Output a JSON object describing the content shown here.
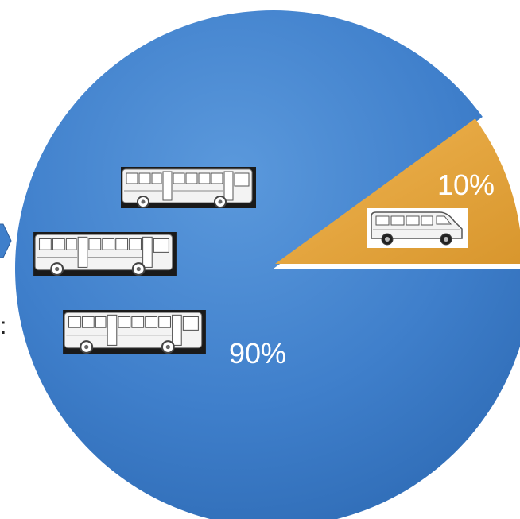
{
  "chart_data": {
    "type": "pie",
    "slices": [
      {
        "value": 90,
        "label": "90%",
        "color": "#3f7fcb",
        "icon": "bus-icon",
        "icon_count": 3
      },
      {
        "value": 10,
        "label": "10%",
        "color": "#e2a23b",
        "icon": "van-icon",
        "icon_count": 1
      }
    ],
    "title": "",
    "legend": "none"
  },
  "fragments": {
    "colon": ":"
  },
  "side_arrow_color": "#3f7fcb"
}
